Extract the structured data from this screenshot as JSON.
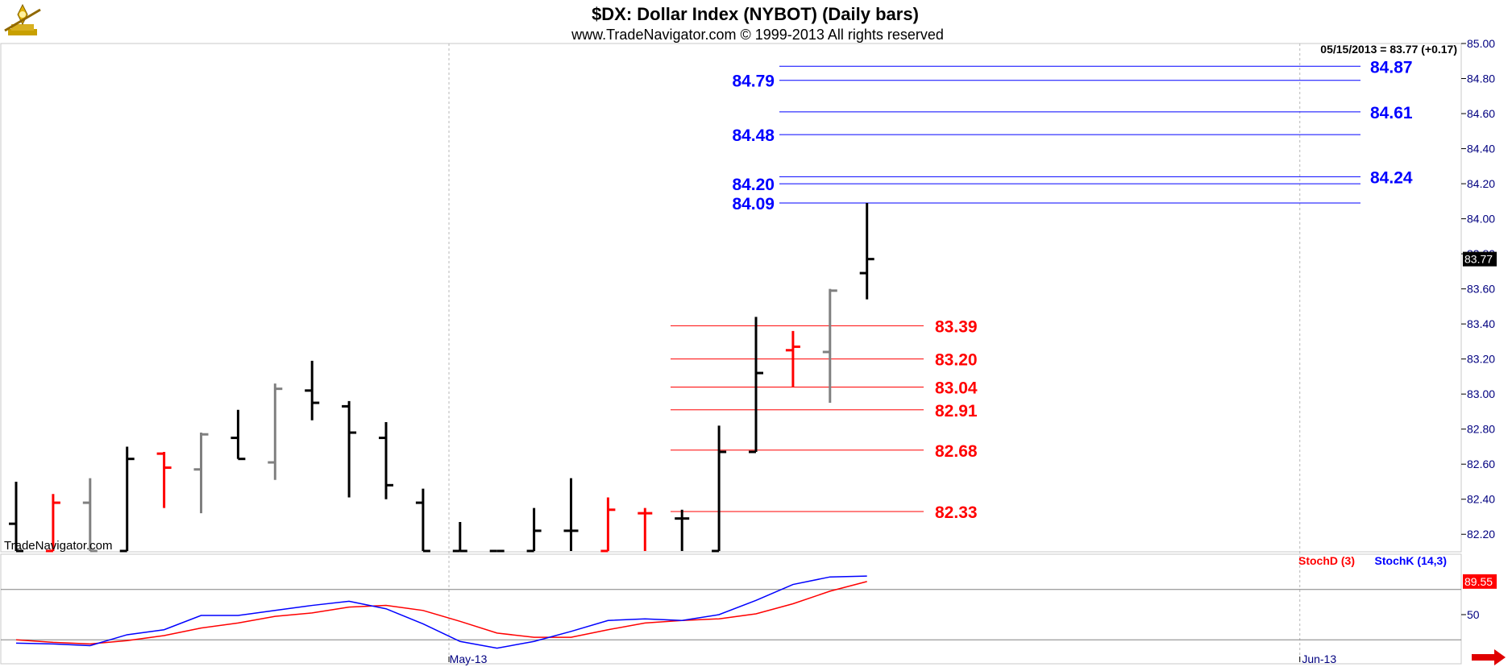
{
  "header": {
    "title": "$DX:  Dollar Index (NYBOT)  (Daily bars)",
    "subtitle": "www.TradeNavigator.com © 1999-2013 All rights reserved"
  },
  "quote": {
    "text": "05/15/2013 = 83.77 (+0.17)",
    "last_price_label": "83.77",
    "last_price": 83.77
  },
  "watermark": "TradeNavigator.com",
  "colors": {
    "up": "#000000",
    "down": "#ff0000",
    "neutral": "#808080",
    "resistance": "#0000ff",
    "support": "#ff0000",
    "axis": "#000080",
    "stochD": "#ff0000",
    "stochK": "#0000ff"
  },
  "chart_data": [
    {
      "type": "ohlc",
      "ylim": [
        82.1,
        85.0
      ],
      "yticks": [
        "85.00",
        "84.80",
        "84.60",
        "84.40",
        "84.20",
        "84.00",
        "83.80",
        "83.60",
        "83.40",
        "83.20",
        "83.00",
        "82.80",
        "82.60",
        "82.40",
        "82.20"
      ],
      "xlabels": [
        {
          "label": "May-13",
          "bar": 11.7
        },
        {
          "label": "Jun-13",
          "bar": 34.7
        }
      ],
      "bars": [
        {
          "o": 82.26,
          "h": 82.5,
          "l": 82.1,
          "c": 82.1,
          "color": "up"
        },
        {
          "o": 82.1,
          "h": 82.43,
          "l": 82.1,
          "c": 82.38,
          "color": "down"
        },
        {
          "o": 82.38,
          "h": 82.52,
          "l": 82.1,
          "c": 82.1,
          "color": "neutral"
        },
        {
          "o": 82.1,
          "h": 82.7,
          "l": 82.1,
          "c": 82.63,
          "color": "up"
        },
        {
          "o": 82.66,
          "h": 82.67,
          "l": 82.35,
          "c": 82.58,
          "color": "down"
        },
        {
          "o": 82.57,
          "h": 82.78,
          "l": 82.32,
          "c": 82.77,
          "color": "neutral"
        },
        {
          "o": 82.75,
          "h": 82.91,
          "l": 82.63,
          "c": 82.63,
          "color": "up"
        },
        {
          "o": 82.61,
          "h": 83.06,
          "l": 82.51,
          "c": 83.03,
          "color": "neutral"
        },
        {
          "o": 83.02,
          "h": 83.19,
          "l": 82.85,
          "c": 82.95,
          "color": "up"
        },
        {
          "o": 82.93,
          "h": 82.96,
          "l": 82.41,
          "c": 82.78,
          "color": "up"
        },
        {
          "o": 82.75,
          "h": 82.84,
          "l": 82.4,
          "c": 82.48,
          "color": "up"
        },
        {
          "o": 82.38,
          "h": 82.46,
          "l": 82.1,
          "c": 82.1,
          "color": "up"
        },
        {
          "o": 82.1,
          "h": 82.27,
          "l": 82.1,
          "c": 82.1,
          "color": "up"
        },
        {
          "o": 82.1,
          "h": 82.1,
          "l": 82.1,
          "c": 82.1,
          "color": "up"
        },
        {
          "o": 82.1,
          "h": 82.35,
          "l": 82.1,
          "c": 82.22,
          "color": "up"
        },
        {
          "o": 82.22,
          "h": 82.52,
          "l": 82.1,
          "c": 82.22,
          "color": "up"
        },
        {
          "o": 82.1,
          "h": 82.41,
          "l": 82.1,
          "c": 82.34,
          "color": "down"
        },
        {
          "o": 82.32,
          "h": 82.35,
          "l": 82.1,
          "c": 82.32,
          "color": "down"
        },
        {
          "o": 82.29,
          "h": 82.34,
          "l": 82.1,
          "c": 82.29,
          "color": "up"
        },
        {
          "o": 82.1,
          "h": 82.82,
          "l": 82.1,
          "c": 82.67,
          "color": "up"
        },
        {
          "o": 82.67,
          "h": 83.44,
          "l": 82.67,
          "c": 83.12,
          "color": "up"
        },
        {
          "o": 83.25,
          "h": 83.36,
          "l": 83.04,
          "c": 83.27,
          "color": "down"
        },
        {
          "o": 83.24,
          "h": 83.6,
          "l": 82.95,
          "c": 83.59,
          "color": "neutral"
        },
        {
          "o": 83.69,
          "h": 84.09,
          "l": 83.54,
          "c": 83.77,
          "color": "up"
        }
      ],
      "resistance_lines": [
        {
          "value": 84.87,
          "label": "84.87",
          "side": "right"
        },
        {
          "value": 84.79,
          "label": "84.79",
          "side": "left"
        },
        {
          "value": 84.61,
          "label": "84.61",
          "side": "right"
        },
        {
          "value": 84.48,
          "label": "84.48",
          "side": "left"
        },
        {
          "value": 84.24,
          "label": "84.24",
          "side": "right"
        },
        {
          "value": 84.2,
          "label": "84.20",
          "side": "left"
        },
        {
          "value": 84.09,
          "label": "84.09",
          "side": "left"
        }
      ],
      "support_lines": [
        {
          "value": 83.39,
          "label": "83.39"
        },
        {
          "value": 83.2,
          "label": "83.20"
        },
        {
          "value": 83.04,
          "label": "83.04"
        },
        {
          "value": 82.91,
          "label": "82.91"
        },
        {
          "value": 82.68,
          "label": "82.68"
        },
        {
          "value": 82.33,
          "label": "82.33"
        }
      ]
    },
    {
      "type": "line",
      "ylim": [
        0,
        100
      ],
      "yticks": [
        "50"
      ],
      "reference_lines": [
        80,
        20
      ],
      "series": [
        {
          "name": "StochD (3)",
          "color": "stochD",
          "value_label": "89.55",
          "values": [
            20,
            17,
            15,
            19,
            25,
            34,
            40,
            48,
            52,
            59,
            61,
            55,
            42,
            28,
            23,
            23,
            32,
            40,
            43,
            45,
            51,
            63,
            78,
            89.55
          ]
        },
        {
          "name": "StochK (14,3)",
          "color": "stochK",
          "value_label": "",
          "values": [
            16,
            15,
            13,
            26,
            32,
            49,
            49,
            55,
            61,
            66,
            57,
            39,
            18,
            10,
            18,
            30,
            43,
            45,
            43,
            50,
            67,
            86,
            95,
            96
          ]
        }
      ]
    }
  ]
}
